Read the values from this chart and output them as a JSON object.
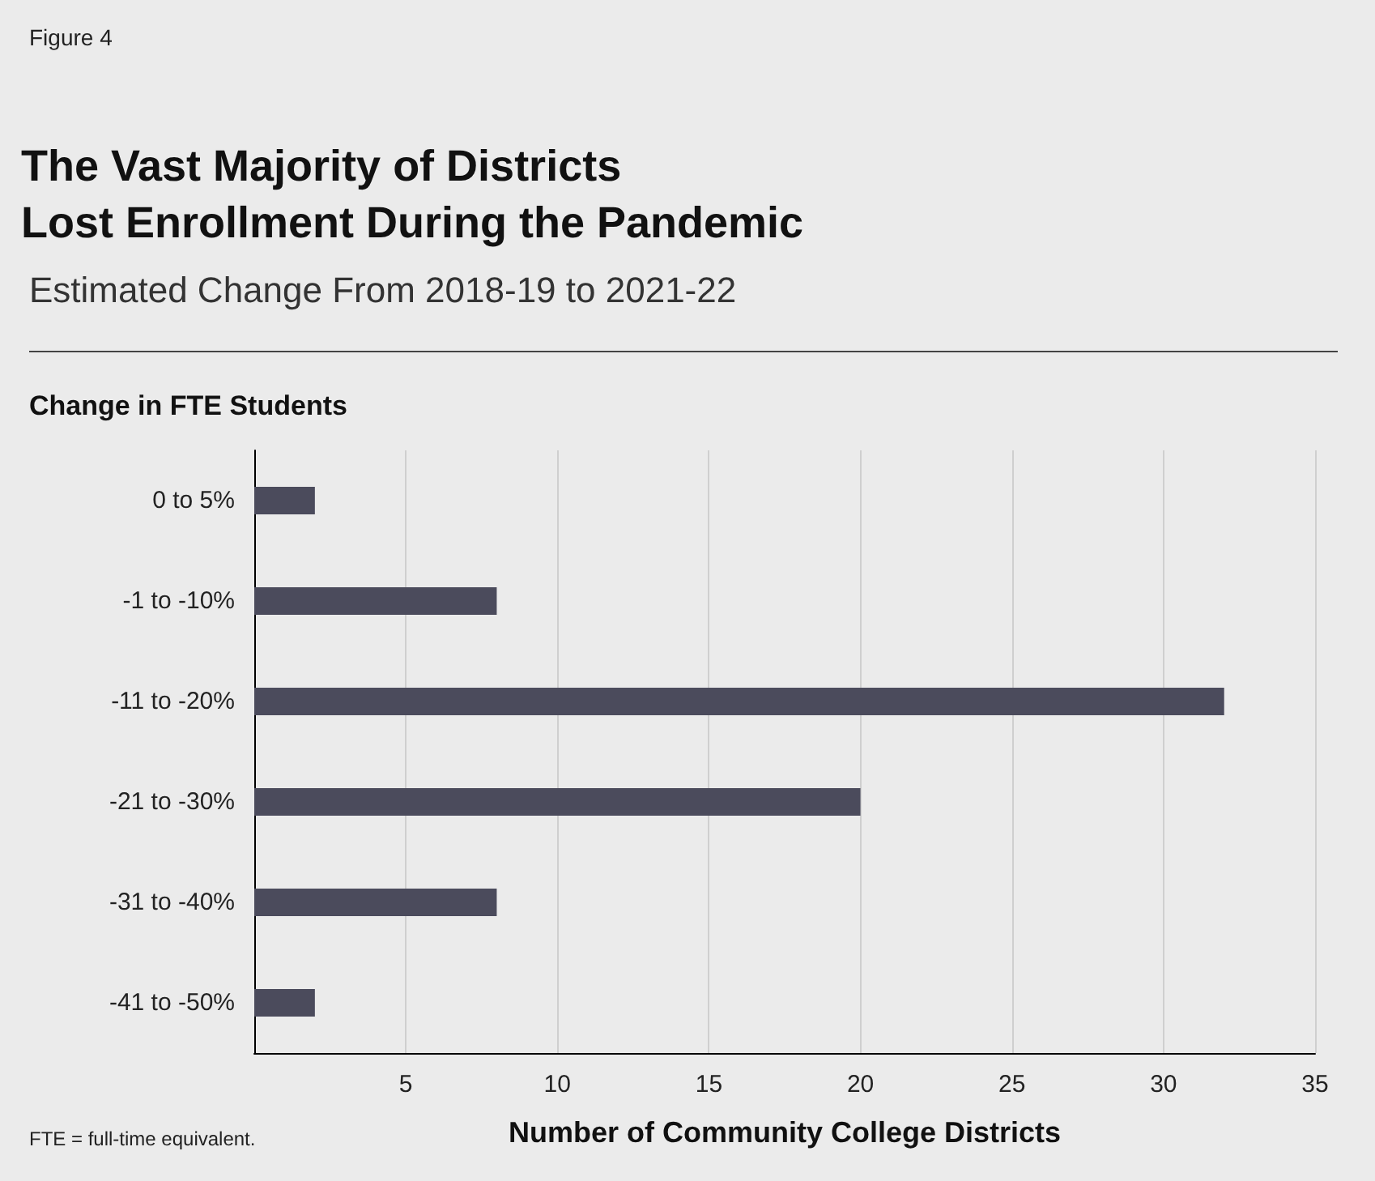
{
  "chart_data": {
    "type": "bar",
    "orientation": "horizontal",
    "title": "The Vast Majority of Districts\nLost Enrollment During the Pandemic",
    "subtitle": "Estimated Change From 2018-19 to 2021-22",
    "ylabel": "Change in FTE Students",
    "xlabel": "Number of Community College Districts",
    "annotations": [
      "Figure 4",
      "FTE = full-time equivalent."
    ],
    "categories": [
      "0 to 5%",
      "-1 to -10%",
      "-11 to -20%",
      "-21 to -30%",
      "-31 to -40%",
      "-41 to -50%"
    ],
    "values": [
      2,
      8,
      32,
      20,
      8,
      2
    ],
    "color": "#4b4b5c",
    "xlim": [
      0,
      35
    ],
    "xticks": [
      5,
      10,
      15,
      20,
      25,
      30,
      35
    ],
    "grid": "x"
  }
}
